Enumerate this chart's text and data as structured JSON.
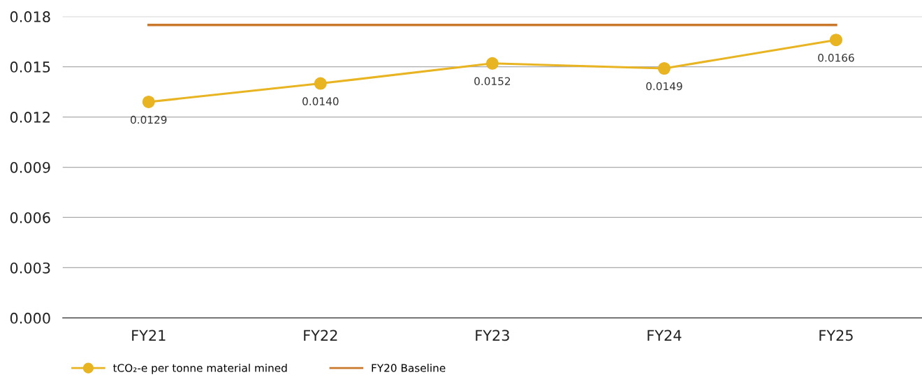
{
  "chart_data": {
    "type": "line",
    "categories": [
      "FY21",
      "FY22",
      "FY23",
      "FY24",
      "FY25"
    ],
    "series": [
      {
        "name": "tCO₂-e per tonne material mined",
        "color": "#e8b422",
        "values": [
          0.0129,
          0.014,
          0.0152,
          0.0149,
          0.0166
        ],
        "value_labels": [
          "0.0129",
          "0.0140",
          "0.0152",
          "0.0149",
          "0.0166"
        ],
        "marker": "circle"
      },
      {
        "name": "FY20 Baseline",
        "color": "#c9782c",
        "values": [
          0.0175,
          0.0175,
          0.0175,
          0.0175,
          0.0175
        ],
        "marker": "none"
      }
    ],
    "ylim": [
      0,
      0.018
    ],
    "yticks": [
      {
        "value": 0,
        "label": "0.000"
      },
      {
        "value": 0.003,
        "label": "0.003"
      },
      {
        "value": 0.006,
        "label": "0.006"
      },
      {
        "value": 0.009,
        "label": "0.009"
      },
      {
        "value": 0.012,
        "label": "0.012"
      },
      {
        "value": 0.015,
        "label": "0.015"
      },
      {
        "value": 0.018,
        "label": "0.018"
      }
    ],
    "grid": "y",
    "legend": "bottom left",
    "line_style": "solid"
  }
}
